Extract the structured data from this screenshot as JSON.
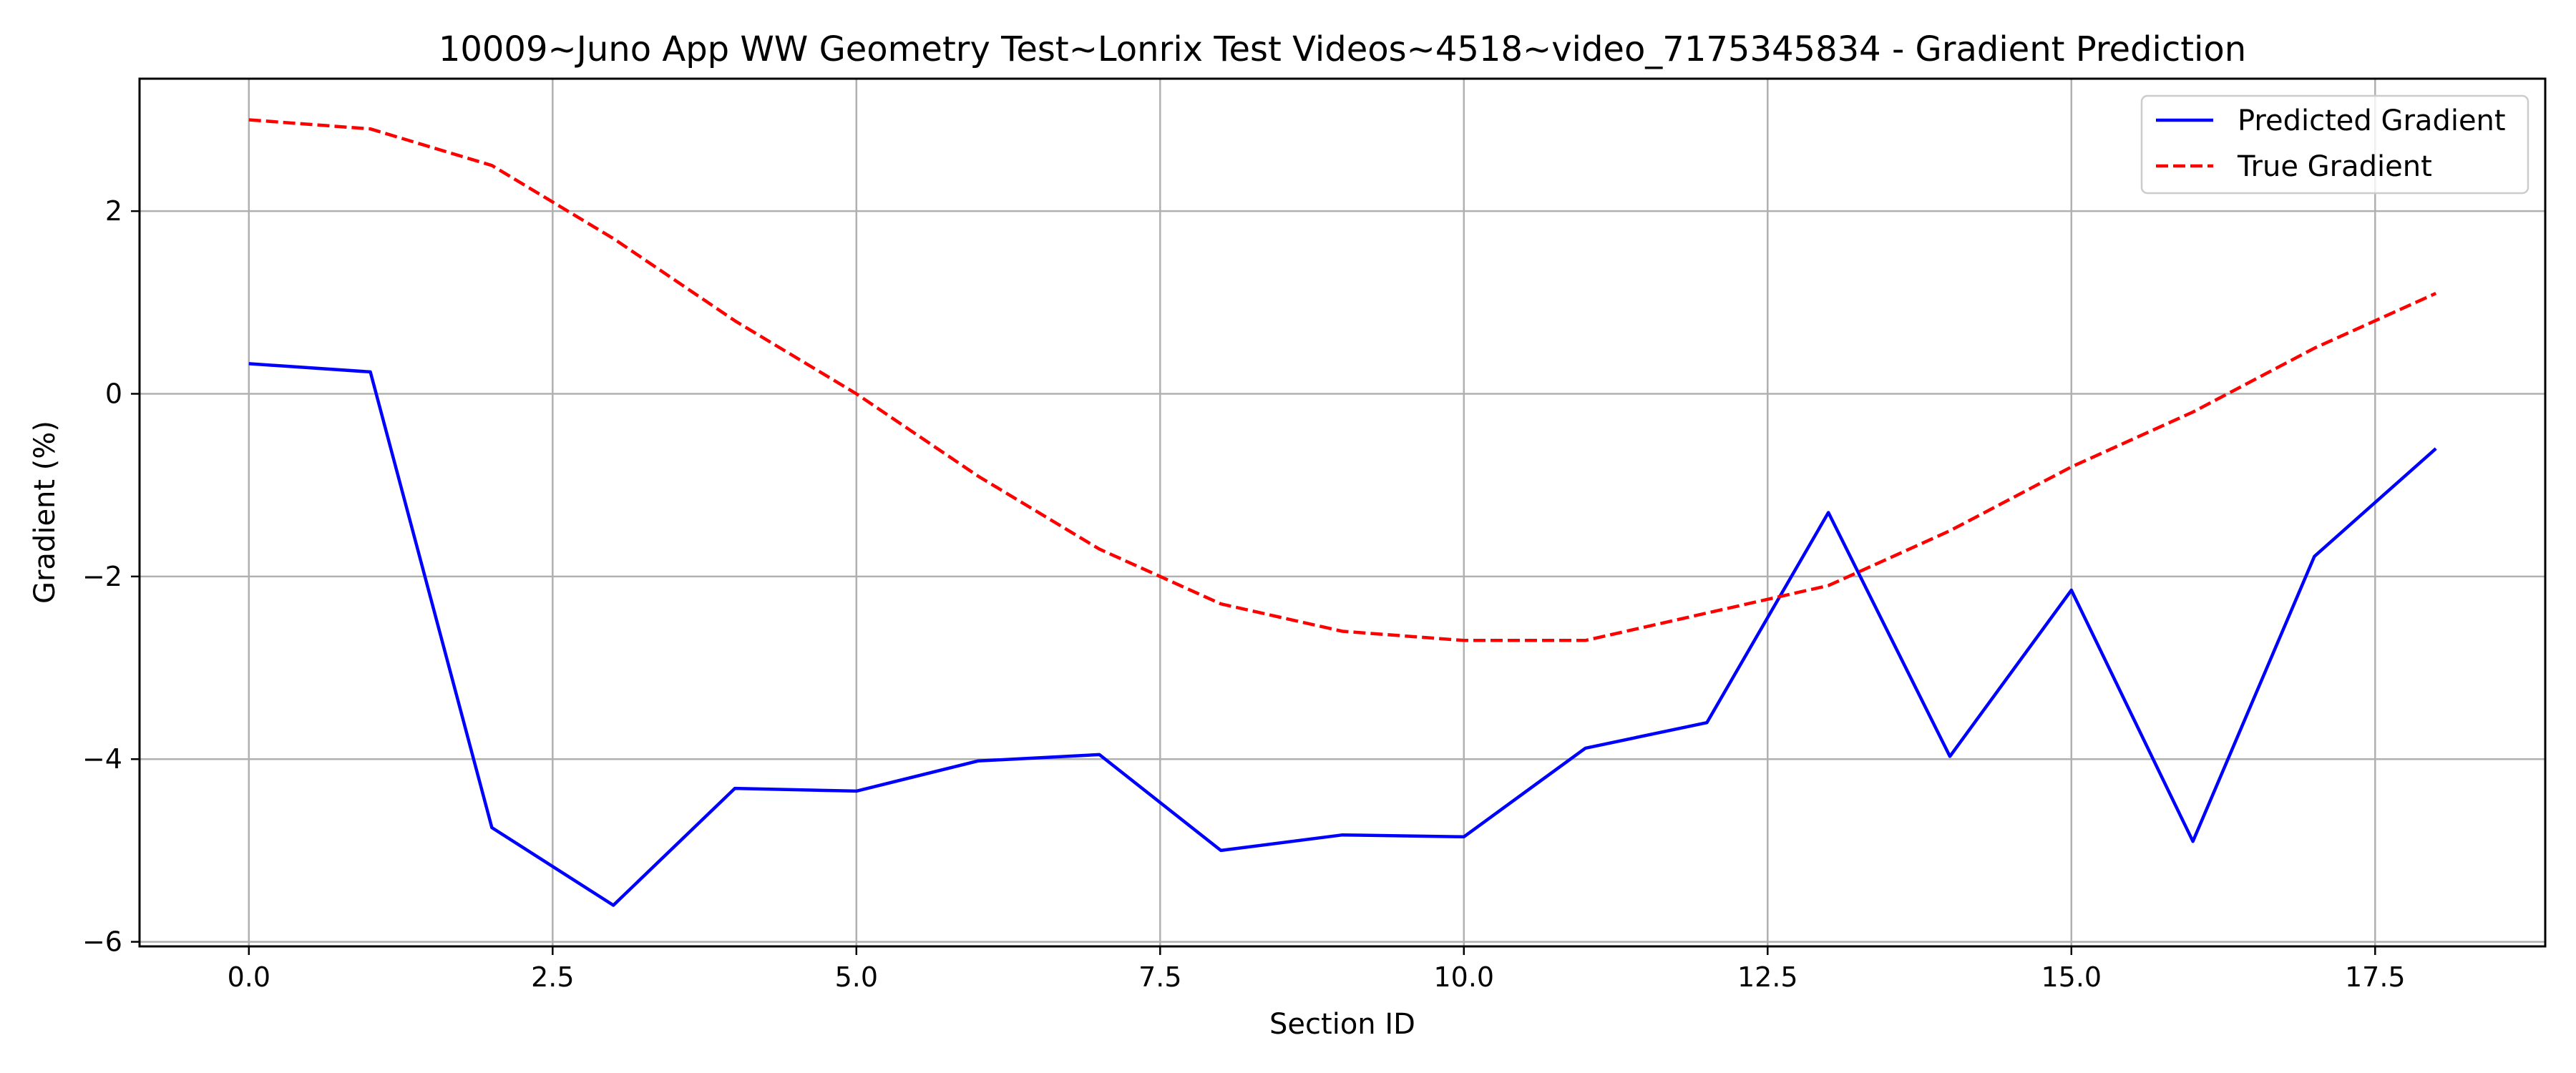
{
  "chart_data": {
    "type": "line",
    "title": "10009~Juno App WW Geometry Test~Lonrix Test Videos~4518~video_7175345834 - Gradient Prediction",
    "xlabel": "Section ID",
    "ylabel": "Gradient (%)",
    "xlim": [
      -0.9,
      18.9
    ],
    "ylim": [
      -6.05,
      3.45
    ],
    "xticks": [
      0.0,
      2.5,
      5.0,
      7.5,
      10.0,
      12.5,
      15.0,
      17.5
    ],
    "xtick_labels": [
      "0.0",
      "2.5",
      "5.0",
      "7.5",
      "10.0",
      "12.5",
      "15.0",
      "17.5"
    ],
    "yticks": [
      -6,
      -4,
      -2,
      0,
      2
    ],
    "ytick_labels": [
      "−6",
      "−4",
      "−2",
      "0",
      "2"
    ],
    "grid": true,
    "legend_position": "top-right",
    "x": [
      0,
      1,
      2,
      3,
      4,
      5,
      6,
      7,
      8,
      9,
      10,
      11,
      12,
      13,
      14,
      15,
      16,
      17,
      18
    ],
    "series": [
      {
        "name": "Predicted Gradient",
        "color": "#0000ff",
        "style": "solid",
        "values": [
          0.33,
          0.24,
          -4.75,
          -5.6,
          -4.32,
          -4.35,
          -4.02,
          -3.95,
          -5.0,
          -4.83,
          -4.85,
          -3.88,
          -3.6,
          -1.3,
          -3.97,
          -2.15,
          -4.9,
          -1.78,
          -0.6
        ]
      },
      {
        "name": "True Gradient",
        "color": "#ff0000",
        "style": "dashed",
        "values": [
          3.0,
          2.9,
          2.5,
          1.7,
          0.8,
          0.0,
          -0.9,
          -1.7,
          -2.3,
          -2.6,
          -2.7,
          -2.7,
          -2.4,
          -2.1,
          -1.5,
          -0.8,
          -0.2,
          0.5,
          1.1
        ]
      }
    ]
  }
}
